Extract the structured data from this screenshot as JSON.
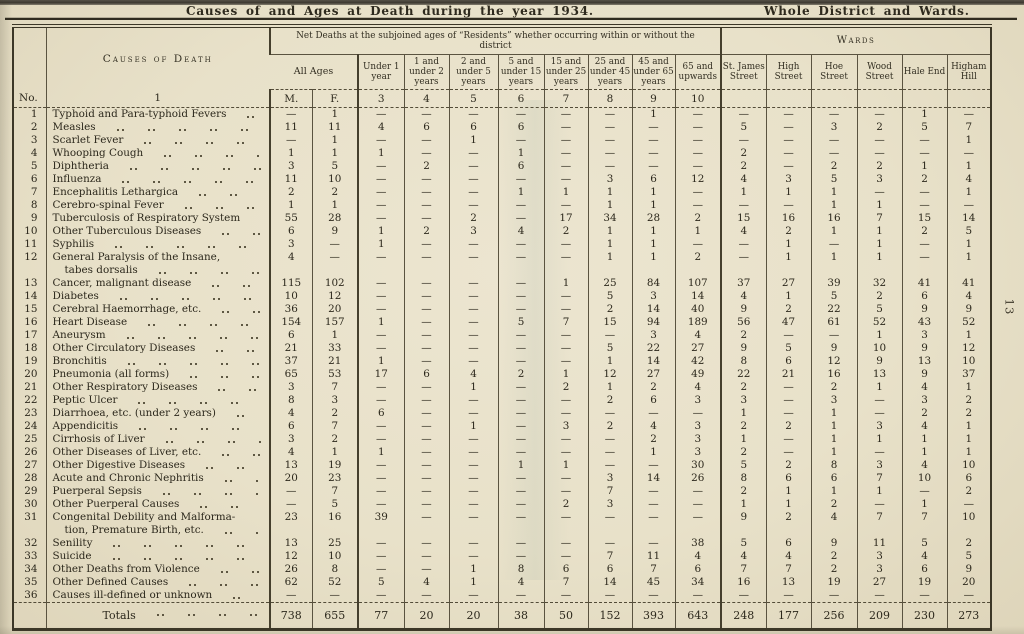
{
  "page": {
    "title": "Causes of and Ages at Death during the year 1934.",
    "subtitle": "Whole District and Wards.",
    "page_number": "13"
  },
  "table": {
    "caption_net_deaths": "Net Deaths at the subjoined ages of “Residents” whether occurring within or without the district",
    "caption_wards": "Wards",
    "col_causes_label": "Causes of Death",
    "all_ages_label": "All Ages",
    "age_headers": [
      "Under 1 year",
      "1 and under 2 years",
      "2 and under 5 years",
      "5 and under 15 years",
      "15 and under 25 years",
      "25 and under 45 years",
      "45 and under 65 years",
      "65 and upwards"
    ],
    "ward_headers": [
      "St. James Street",
      "High Street",
      "Hoe Street",
      "Wood Street",
      "Hale End",
      "Higham Hill"
    ],
    "number_row": [
      "No.",
      "1",
      "M.",
      "F.",
      "3",
      "4",
      "5",
      "6",
      "7",
      "8",
      "9",
      "10"
    ],
    "rows": [
      {
        "no": "1",
        "cause": "Typhoid and Para-typhoid Fevers",
        "values": [
          "—",
          "1",
          "—",
          "—",
          "—",
          "—",
          "—",
          "—",
          "1",
          "—",
          "—",
          "—",
          "—",
          "—",
          "1",
          "—"
        ]
      },
      {
        "no": "2",
        "cause": "Measles",
        "values": [
          "11",
          "11",
          "4",
          "6",
          "6",
          "6",
          "—",
          "—",
          "—",
          "—",
          "5",
          "—",
          "3",
          "2",
          "5",
          "7"
        ]
      },
      {
        "no": "3",
        "cause": "Scarlet Fever",
        "values": [
          "—",
          "1",
          "—",
          "—",
          "1",
          "—",
          "—",
          "—",
          "—",
          "—",
          "—",
          "—",
          "—",
          "—",
          "—",
          "1"
        ]
      },
      {
        "no": "4",
        "cause": "Whooping Cough",
        "values": [
          "1",
          "1",
          "1",
          "—",
          "—",
          "1",
          "—",
          "—",
          "—",
          "—",
          "2",
          "—",
          "—",
          "—",
          "—",
          "—"
        ]
      },
      {
        "no": "5",
        "cause": "Diphtheria",
        "values": [
          "3",
          "5",
          "—",
          "2",
          "—",
          "6",
          "—",
          "—",
          "—",
          "—",
          "2",
          "—",
          "2",
          "2",
          "1",
          "1"
        ]
      },
      {
        "no": "6",
        "cause": "Influenza",
        "values": [
          "11",
          "10",
          "—",
          "—",
          "—",
          "—",
          "—",
          "3",
          "6",
          "12",
          "4",
          "3",
          "5",
          "3",
          "2",
          "4"
        ]
      },
      {
        "no": "7",
        "cause": "Encephalitis Lethargica",
        "values": [
          "2",
          "2",
          "—",
          "—",
          "—",
          "1",
          "1",
          "1",
          "1",
          "—",
          "1",
          "1",
          "1",
          "—",
          "—",
          "1"
        ]
      },
      {
        "no": "8",
        "cause": "Cerebro-spinal Fever",
        "values": [
          "1",
          "1",
          "—",
          "—",
          "—",
          "—",
          "—",
          "1",
          "1",
          "—",
          "—",
          "—",
          "1",
          "1",
          "—",
          "—"
        ]
      },
      {
        "no": "9",
        "cause": "Tuberculosis of Respiratory System",
        "values": [
          "55",
          "28",
          "—",
          "—",
          "2",
          "—",
          "17",
          "34",
          "28",
          "2",
          "15",
          "16",
          "16",
          "7",
          "15",
          "14"
        ]
      },
      {
        "no": "10",
        "cause": "Other Tuberculous Diseases",
        "values": [
          "6",
          "9",
          "1",
          "2",
          "3",
          "4",
          "2",
          "1",
          "1",
          "1",
          "4",
          "2",
          "1",
          "1",
          "2",
          "5"
        ]
      },
      {
        "no": "11",
        "cause": "Syphilis",
        "values": [
          "3",
          "—",
          "1",
          "—",
          "—",
          "—",
          "—",
          "1",
          "1",
          "—",
          "—",
          "1",
          "—",
          "1",
          "—",
          "1"
        ]
      },
      {
        "no": "12",
        "cause": "General Paralysis of the Insane,",
        "cause2": "tabes dorsalis",
        "values": [
          "4",
          "—",
          "—",
          "—",
          "—",
          "—",
          "—",
          "1",
          "1",
          "2",
          "—",
          "1",
          "1",
          "1",
          "—",
          "1"
        ]
      },
      {
        "no": "13",
        "cause": "Cancer, malignant disease",
        "values": [
          "115",
          "102",
          "—",
          "—",
          "—",
          "—",
          "1",
          "25",
          "84",
          "107",
          "37",
          "27",
          "39",
          "32",
          "41",
          "41"
        ]
      },
      {
        "no": "14",
        "cause": "Diabetes",
        "values": [
          "10",
          "12",
          "—",
          "—",
          "—",
          "—",
          "—",
          "5",
          "3",
          "14",
          "4",
          "1",
          "5",
          "2",
          "6",
          "4"
        ]
      },
      {
        "no": "15",
        "cause": "Cerebral Haemorrhage, etc.",
        "values": [
          "36",
          "20",
          "—",
          "—",
          "—",
          "—",
          "—",
          "2",
          "14",
          "40",
          "9",
          "2",
          "22",
          "5",
          "9",
          "9"
        ]
      },
      {
        "no": "16",
        "cause": "Heart Disease",
        "values": [
          "154",
          "157",
          "1",
          "—",
          "—",
          "5",
          "7",
          "15",
          "94",
          "189",
          "56",
          "47",
          "61",
          "52",
          "43",
          "52"
        ]
      },
      {
        "no": "17",
        "cause": "Aneurysm",
        "values": [
          "6",
          "1",
          "—",
          "—",
          "—",
          "—",
          "—",
          "—",
          "3",
          "4",
          "2",
          "—",
          "—",
          "1",
          "3",
          "1"
        ]
      },
      {
        "no": "18",
        "cause": "Other Circulatory Diseases",
        "values": [
          "21",
          "33",
          "—",
          "—",
          "—",
          "—",
          "—",
          "5",
          "22",
          "27",
          "9",
          "5",
          "9",
          "10",
          "9",
          "12"
        ]
      },
      {
        "no": "19",
        "cause": "Bronchitis",
        "values": [
          "37",
          "21",
          "1",
          "—",
          "—",
          "—",
          "—",
          "1",
          "14",
          "42",
          "8",
          "6",
          "12",
          "9",
          "13",
          "10"
        ]
      },
      {
        "no": "20",
        "cause": "Pneumonia (all forms)",
        "values": [
          "65",
          "53",
          "17",
          "6",
          "4",
          "2",
          "1",
          "12",
          "27",
          "49",
          "22",
          "21",
          "16",
          "13",
          "9",
          "37"
        ]
      },
      {
        "no": "21",
        "cause": "Other Respiratory Diseases",
        "values": [
          "3",
          "7",
          "—",
          "—",
          "1",
          "—",
          "2",
          "1",
          "2",
          "4",
          "2",
          "—",
          "2",
          "1",
          "4",
          "1"
        ]
      },
      {
        "no": "22",
        "cause": "Peptic Ulcer",
        "values": [
          "8",
          "3",
          "—",
          "—",
          "—",
          "—",
          "—",
          "2",
          "6",
          "3",
          "3",
          "—",
          "3",
          "—",
          "3",
          "2"
        ]
      },
      {
        "no": "23",
        "cause": "Diarrhoea, etc. (under 2 years)",
        "values": [
          "4",
          "2",
          "6",
          "—",
          "—",
          "—",
          "—",
          "—",
          "—",
          "—",
          "1",
          "—",
          "1",
          "—",
          "2",
          "2"
        ]
      },
      {
        "no": "24",
        "cause": "Appendicitis",
        "values": [
          "6",
          "7",
          "—",
          "—",
          "1",
          "—",
          "3",
          "2",
          "4",
          "3",
          "2",
          "2",
          "1",
          "3",
          "4",
          "1"
        ]
      },
      {
        "no": "25",
        "cause": "Cirrhosis of Liver",
        "values": [
          "3",
          "2",
          "—",
          "—",
          "—",
          "—",
          "—",
          "—",
          "2",
          "3",
          "1",
          "—",
          "1",
          "1",
          "1",
          "1"
        ]
      },
      {
        "no": "26",
        "cause": "Other Diseases of Liver, etc.",
        "values": [
          "4",
          "1",
          "1",
          "—",
          "—",
          "—",
          "—",
          "—",
          "1",
          "3",
          "2",
          "—",
          "1",
          "—",
          "1",
          "1"
        ]
      },
      {
        "no": "27",
        "cause": "Other Digestive Diseases",
        "values": [
          "13",
          "19",
          "—",
          "—",
          "—",
          "1",
          "1",
          "—",
          "—",
          "30",
          "5",
          "2",
          "8",
          "3",
          "4",
          "10"
        ]
      },
      {
        "no": "28",
        "cause": "Acute and Chronic Nephritis",
        "values": [
          "20",
          "23",
          "—",
          "—",
          "—",
          "—",
          "—",
          "3",
          "14",
          "26",
          "8",
          "6",
          "6",
          "7",
          "10",
          "6"
        ]
      },
      {
        "no": "29",
        "cause": "Puerperal Sepsis",
        "values": [
          "—",
          "7",
          "—",
          "—",
          "—",
          "—",
          "—",
          "7",
          "—",
          "—",
          "2",
          "1",
          "1",
          "1",
          "—",
          "2"
        ]
      },
      {
        "no": "30",
        "cause": "Other Puerperal Causes",
        "values": [
          "—",
          "5",
          "—",
          "—",
          "—",
          "—",
          "2",
          "3",
          "—",
          "—",
          "1",
          "1",
          "2",
          "—",
          "1",
          "—"
        ]
      },
      {
        "no": "31",
        "cause": "Congenital Debility and Malforma-",
        "cause2": "tion, Premature Birth, etc.",
        "values": [
          "23",
          "16",
          "39",
          "—",
          "—",
          "—",
          "—",
          "—",
          "—",
          "—",
          "9",
          "2",
          "4",
          "7",
          "7",
          "10"
        ]
      },
      {
        "no": "32",
        "cause": "Senility",
        "values": [
          "13",
          "25",
          "—",
          "—",
          "—",
          "—",
          "—",
          "—",
          "—",
          "38",
          "5",
          "6",
          "9",
          "11",
          "5",
          "2"
        ]
      },
      {
        "no": "33",
        "cause": "Suicide",
        "values": [
          "12",
          "10",
          "—",
          "—",
          "—",
          "—",
          "—",
          "7",
          "11",
          "4",
          "4",
          "4",
          "2",
          "3",
          "4",
          "5"
        ]
      },
      {
        "no": "34",
        "cause": "Other Deaths from Violence",
        "values": [
          "26",
          "8",
          "—",
          "—",
          "1",
          "8",
          "6",
          "6",
          "7",
          "6",
          "7",
          "7",
          "2",
          "3",
          "6",
          "9"
        ]
      },
      {
        "no": "35",
        "cause": "Other Defined Causes",
        "values": [
          "62",
          "52",
          "5",
          "4",
          "1",
          "4",
          "7",
          "14",
          "45",
          "34",
          "16",
          "13",
          "19",
          "27",
          "19",
          "20"
        ]
      },
      {
        "no": "36",
        "cause": "Causes ill-defined or unknown",
        "values": [
          "—",
          "—",
          "—",
          "—",
          "—",
          "—",
          "—",
          "—",
          "—",
          "—",
          "—",
          "—",
          "—",
          "—",
          "—",
          "—"
        ]
      }
    ],
    "totals_label": "Totals",
    "totals": [
      "738",
      "655",
      "77",
      "20",
      "20",
      "38",
      "50",
      "152",
      "393",
      "643",
      "248",
      "177",
      "256",
      "209",
      "230",
      "273"
    ]
  }
}
